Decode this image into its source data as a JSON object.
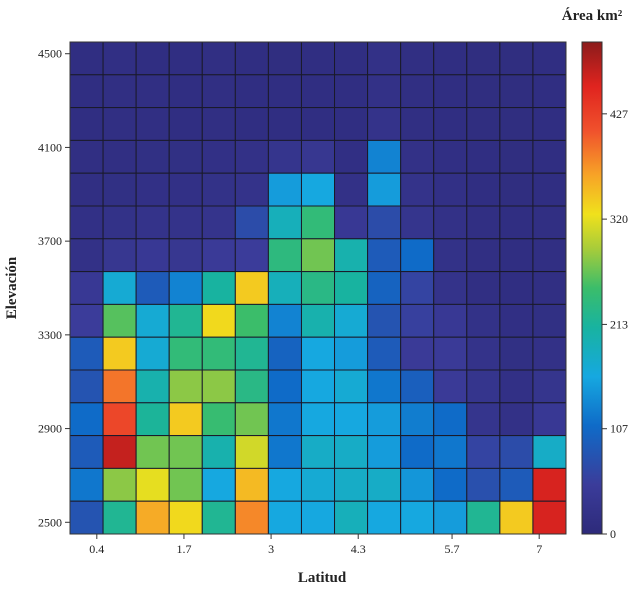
{
  "chart_data": {
    "type": "heatmap",
    "xlabel": "Latitud",
    "ylabel": "Elevación",
    "colorbar_title": "Área km²",
    "x_ticks": [
      "0.4",
      "1.7",
      "3",
      "4.3",
      "5.7",
      "7"
    ],
    "y_ticks": [
      "2500",
      "2900",
      "3300",
      "3700",
      "4100",
      "4500"
    ],
    "colorbar_ticks": [
      "0",
      "107",
      "213",
      "320",
      "427"
    ],
    "color_range": [
      0,
      500
    ],
    "n_cols": 15,
    "n_rows": 15,
    "x_range": [
      0,
      7.4
    ],
    "y_range": [
      2450,
      4550
    ],
    "rows_top_to_bottom": [
      [
        12,
        15,
        12,
        12,
        14,
        12,
        10,
        12,
        12,
        20,
        14,
        12,
        10,
        10,
        12
      ],
      [
        12,
        14,
        14,
        12,
        14,
        12,
        12,
        12,
        12,
        20,
        14,
        12,
        10,
        10,
        12
      ],
      [
        12,
        14,
        14,
        12,
        14,
        12,
        12,
        12,
        12,
        25,
        14,
        12,
        10,
        10,
        12
      ],
      [
        14,
        14,
        16,
        16,
        18,
        20,
        30,
        35,
        15,
        130,
        20,
        15,
        12,
        10,
        12
      ],
      [
        14,
        16,
        18,
        18,
        22,
        25,
        150,
        160,
        20,
        150,
        25,
        18,
        12,
        10,
        12
      ],
      [
        18,
        22,
        25,
        25,
        28,
        70,
        190,
        240,
        40,
        70,
        30,
        20,
        14,
        12,
        14
      ],
      [
        20,
        35,
        40,
        35,
        45,
        50,
        235,
        270,
        200,
        90,
        110,
        22,
        14,
        12,
        14
      ],
      [
        40,
        170,
        90,
        130,
        210,
        340,
        190,
        230,
        210,
        100,
        60,
        25,
        14,
        12,
        14
      ],
      [
        50,
        260,
        170,
        220,
        330,
        250,
        130,
        200,
        170,
        80,
        55,
        40,
        22,
        15,
        16
      ],
      [
        90,
        340,
        170,
        240,
        240,
        220,
        100,
        160,
        150,
        90,
        45,
        45,
        25,
        16,
        20
      ],
      [
        80,
        390,
        200,
        280,
        280,
        230,
        110,
        160,
        170,
        120,
        95,
        45,
        30,
        18,
        30
      ],
      [
        110,
        420,
        215,
        340,
        245,
        270,
        120,
        160,
        160,
        150,
        125,
        110,
        30,
        20,
        40
      ],
      [
        90,
        470,
        270,
        270,
        200,
        310,
        120,
        180,
        180,
        150,
        110,
        120,
        60,
        70,
        180
      ],
      [
        120,
        280,
        320,
        270,
        160,
        350,
        160,
        170,
        180,
        180,
        145,
        110,
        75,
        90,
        460
      ],
      [
        80,
        220,
        360,
        330,
        220,
        380,
        160,
        160,
        190,
        160,
        160,
        150,
        220,
        340,
        460
      ]
    ]
  }
}
